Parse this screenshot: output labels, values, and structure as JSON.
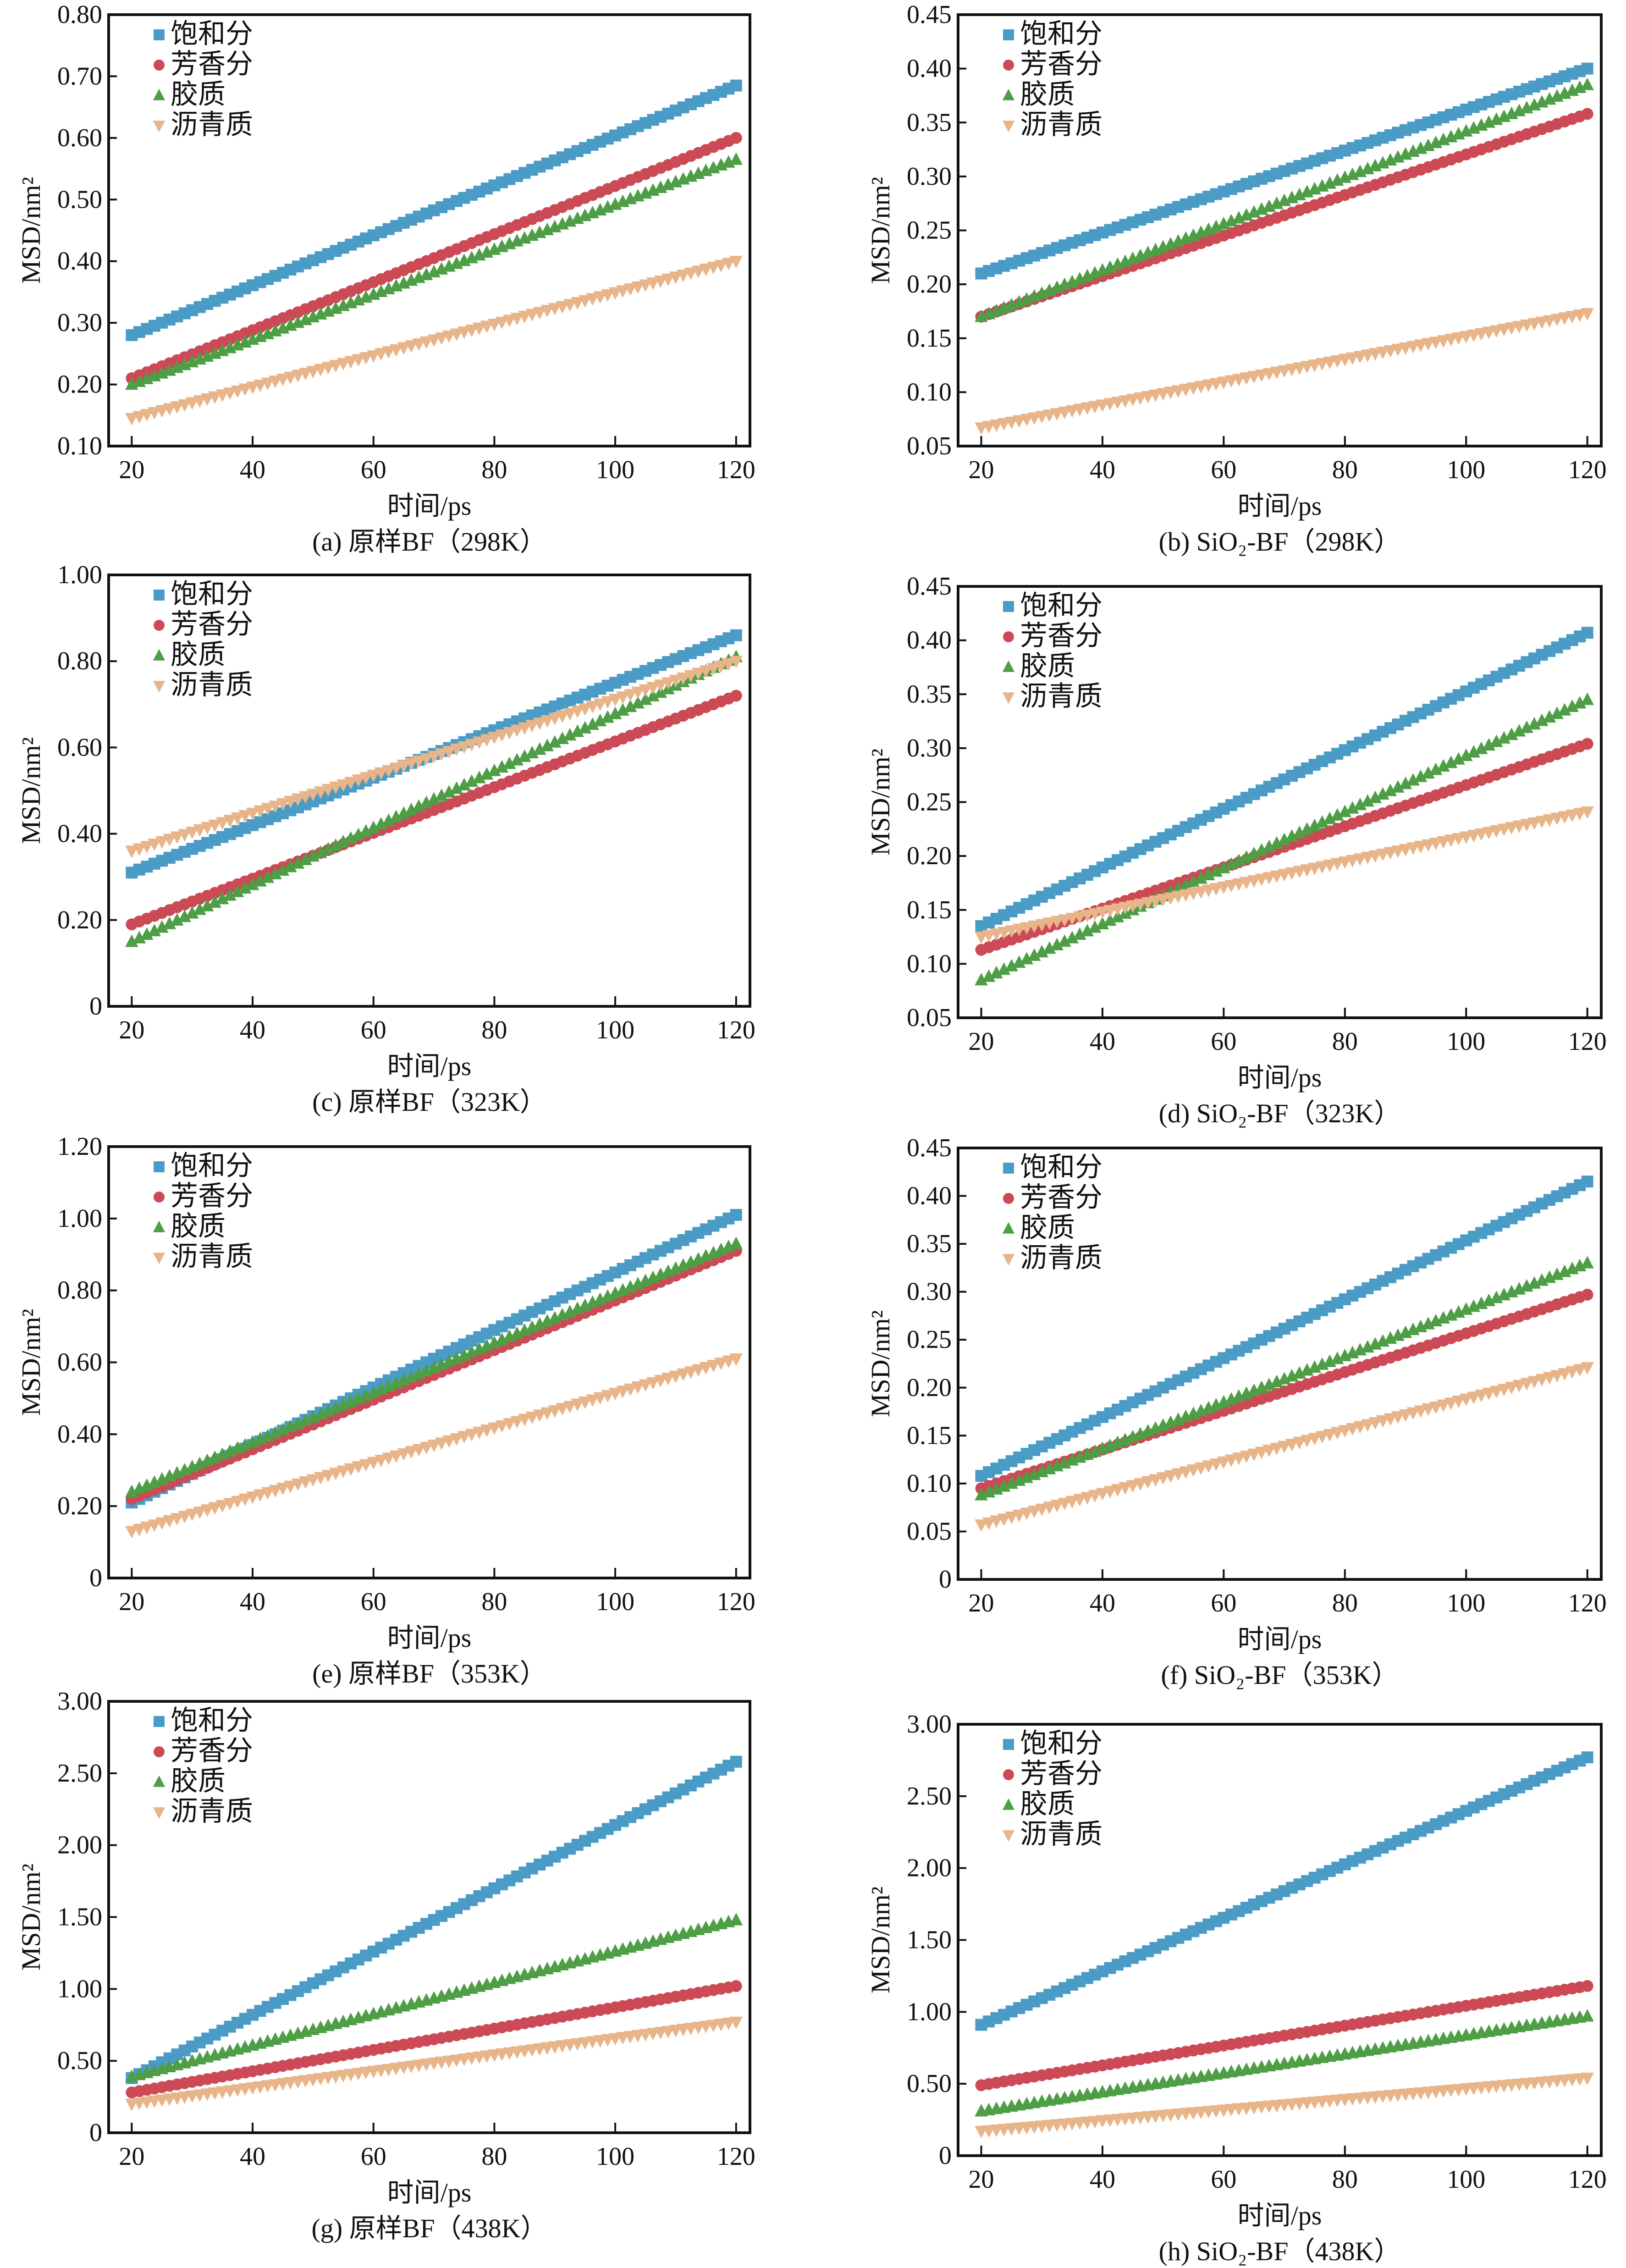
{
  "colors": {
    "饱和分": "#4a9cc6",
    "芳香分": "#cc4a55",
    "胶质": "#4e9e46",
    "沥青质": "#e8b48a"
  },
  "markers": {
    "饱和分": "square",
    "芳香分": "circle",
    "胶质": "triangle-up",
    "沥青质": "triangle-down"
  },
  "chart_data": [
    {
      "type": "scatter",
      "caption": "(a) 原样BF（298K）",
      "xlabel": "时间/ps",
      "ylabel": "MSD/nm²",
      "xlim": [
        20,
        120
      ],
      "ylim": [
        0.1,
        0.8
      ],
      "xticks": [
        "20",
        "40",
        "60",
        "80",
        "100",
        "120"
      ],
      "yticks": [
        "0.10",
        "0.20",
        "0.30",
        "0.40",
        "0.50",
        "0.60",
        "0.70",
        "0.80"
      ],
      "legend": "top-left",
      "series": [
        {
          "name": "饱和分",
          "x": [
            20,
            120
          ],
          "y": [
            0.28,
            0.685
          ]
        },
        {
          "name": "芳香分",
          "x": [
            20,
            120
          ],
          "y": [
            0.21,
            0.6
          ]
        },
        {
          "name": "胶质",
          "x": [
            20,
            120
          ],
          "y": [
            0.2,
            0.565
          ]
        },
        {
          "name": "沥青质",
          "x": [
            20,
            120
          ],
          "y": [
            0.145,
            0.4
          ]
        }
      ]
    },
    {
      "type": "scatter",
      "caption": "(b) SiO₂-BF（298K）",
      "xlabel": "时间/ps",
      "ylabel": "MSD/nm²",
      "xlim": [
        20,
        120
      ],
      "ylim": [
        0.05,
        0.45
      ],
      "xticks": [
        "20",
        "40",
        "60",
        "80",
        "100",
        "120"
      ],
      "yticks": [
        "0.05",
        "0.10",
        "0.15",
        "0.20",
        "0.25",
        "0.30",
        "0.35",
        "0.40",
        "0.45"
      ],
      "legend": "top-left",
      "series": [
        {
          "name": "饱和分",
          "x": [
            20,
            120
          ],
          "y": [
            0.21,
            0.4
          ]
        },
        {
          "name": "芳香分",
          "x": [
            20,
            120
          ],
          "y": [
            0.17,
            0.358
          ]
        },
        {
          "name": "胶质",
          "x": [
            20,
            120
          ],
          "y": [
            0.17,
            0.385
          ]
        },
        {
          "name": "沥青质",
          "x": [
            20,
            120
          ],
          "y": [
            0.067,
            0.173
          ]
        }
      ]
    },
    {
      "type": "scatter",
      "caption": "(c) 原样BF（323K）",
      "xlabel": "时间/ps",
      "ylabel": "MSD/nm²",
      "xlim": [
        20,
        120
      ],
      "ylim": [
        0,
        1.0
      ],
      "xticks": [
        "20",
        "40",
        "60",
        "80",
        "100",
        "120"
      ],
      "yticks": [
        "0",
        "0.20",
        "0.40",
        "0.60",
        "0.80",
        "1.00"
      ],
      "legend": "top-left",
      "series": [
        {
          "name": "饱和分",
          "x": [
            20,
            120
          ],
          "y": [
            0.31,
            0.86
          ]
        },
        {
          "name": "芳香分",
          "x": [
            20,
            120
          ],
          "y": [
            0.19,
            0.72
          ]
        },
        {
          "name": "胶质",
          "x": [
            20,
            120
          ],
          "y": [
            0.15,
            0.81
          ]
        },
        {
          "name": "沥青质",
          "x": [
            20,
            120
          ],
          "y": [
            0.36,
            0.8
          ]
        }
      ]
    },
    {
      "type": "scatter",
      "caption": "(d) SiO₂-BF（323K）",
      "xlabel": "时间/ps",
      "ylabel": "MSD/nm²",
      "xlim": [
        20,
        120
      ],
      "ylim": [
        0.05,
        0.45
      ],
      "xticks": [
        "20",
        "40",
        "60",
        "80",
        "100",
        "120"
      ],
      "yticks": [
        "0.05",
        "0.10",
        "0.15",
        "0.20",
        "0.25",
        "0.30",
        "0.35",
        "0.40",
        "0.45"
      ],
      "legend": "top-left",
      "series": [
        {
          "name": "饱和分",
          "x": [
            20,
            120
          ],
          "y": [
            0.135,
            0.407
          ]
        },
        {
          "name": "芳香分",
          "x": [
            20,
            120
          ],
          "y": [
            0.113,
            0.304
          ]
        },
        {
          "name": "胶质",
          "x": [
            20,
            120
          ],
          "y": [
            0.085,
            0.345
          ]
        },
        {
          "name": "沥青质",
          "x": [
            20,
            120
          ],
          "y": [
            0.125,
            0.241
          ]
        }
      ]
    },
    {
      "type": "scatter",
      "caption": "(e) 原样BF（353K）",
      "xlabel": "时间/ps",
      "ylabel": "MSD/nm²",
      "xlim": [
        20,
        120
      ],
      "ylim": [
        0,
        1.2
      ],
      "xticks": [
        "20",
        "40",
        "60",
        "80",
        "100",
        "120"
      ],
      "yticks": [
        "0",
        "0.20",
        "0.40",
        "0.60",
        "0.80",
        "1.00",
        "1.20"
      ],
      "legend": "top-left",
      "series": [
        {
          "name": "饱和分",
          "x": [
            20,
            120
          ],
          "y": [
            0.21,
            1.01
          ]
        },
        {
          "name": "芳香分",
          "x": [
            20,
            120
          ],
          "y": [
            0.22,
            0.91
          ]
        },
        {
          "name": "胶质",
          "x": [
            20,
            120
          ],
          "y": [
            0.24,
            0.93
          ]
        },
        {
          "name": "沥青质",
          "x": [
            20,
            120
          ],
          "y": [
            0.13,
            0.61
          ]
        }
      ]
    },
    {
      "type": "scatter",
      "caption": "(f) SiO₂-BF（353K）",
      "xlabel": "时间/ps",
      "ylabel": "MSD/nm²",
      "xlim": [
        20,
        120
      ],
      "ylim": [
        0,
        0.45
      ],
      "xticks": [
        "20",
        "40",
        "60",
        "80",
        "100",
        "120"
      ],
      "yticks": [
        "0",
        "0.05",
        "0.10",
        "0.15",
        "0.20",
        "0.25",
        "0.30",
        "0.35",
        "0.40",
        "0.45"
      ],
      "legend": "top-left",
      "series": [
        {
          "name": "饱和分",
          "x": [
            20,
            120
          ],
          "y": [
            0.108,
            0.415
          ]
        },
        {
          "name": "芳香分",
          "x": [
            20,
            120
          ],
          "y": [
            0.095,
            0.297
          ]
        },
        {
          "name": "胶质",
          "x": [
            20,
            120
          ],
          "y": [
            0.088,
            0.33
          ]
        },
        {
          "name": "沥青质",
          "x": [
            20,
            120
          ],
          "y": [
            0.057,
            0.221
          ]
        }
      ]
    },
    {
      "type": "scatter",
      "caption": "(g) 原样BF（438K）",
      "xlabel": "时间/ps",
      "ylabel": "MSD/nm²",
      "xlim": [
        20,
        120
      ],
      "ylim": [
        0,
        3.0
      ],
      "xticks": [
        "20",
        "40",
        "60",
        "80",
        "100",
        "120"
      ],
      "yticks": [
        "0",
        "0.50",
        "1.00",
        "1.50",
        "2.00",
        "2.50",
        "3.00"
      ],
      "legend": "top-left",
      "series": [
        {
          "name": "饱和分",
          "x": [
            20,
            120
          ],
          "y": [
            0.38,
            2.58
          ]
        },
        {
          "name": "芳香分",
          "x": [
            20,
            120
          ],
          "y": [
            0.28,
            1.02
          ]
        },
        {
          "name": "胶质",
          "x": [
            20,
            120
          ],
          "y": [
            0.39,
            1.48
          ]
        },
        {
          "name": "沥青质",
          "x": [
            20,
            120
          ],
          "y": [
            0.2,
            0.77
          ]
        }
      ]
    },
    {
      "type": "scatter",
      "caption": "(h) SiO₂-BF（438K）",
      "xlabel": "时间/ps",
      "ylabel": "MSD/nm²",
      "xlim": [
        20,
        120
      ],
      "ylim": [
        0,
        3.0
      ],
      "xticks": [
        "20",
        "40",
        "60",
        "80",
        "100",
        "120"
      ],
      "yticks": [
        "0",
        "0.50",
        "1.00",
        "1.50",
        "2.00",
        "2.50",
        "3.00"
      ],
      "legend": "top-left",
      "series": [
        {
          "name": "饱和分",
          "x": [
            20,
            120
          ],
          "y": [
            0.91,
            2.77
          ]
        },
        {
          "name": "芳香分",
          "x": [
            20,
            120
          ],
          "y": [
            0.49,
            1.18
          ]
        },
        {
          "name": "胶质",
          "x": [
            20,
            120
          ],
          "y": [
            0.31,
            0.97
          ]
        },
        {
          "name": "沥青质",
          "x": [
            20,
            120
          ],
          "y": [
            0.17,
            0.54
          ]
        }
      ]
    }
  ]
}
